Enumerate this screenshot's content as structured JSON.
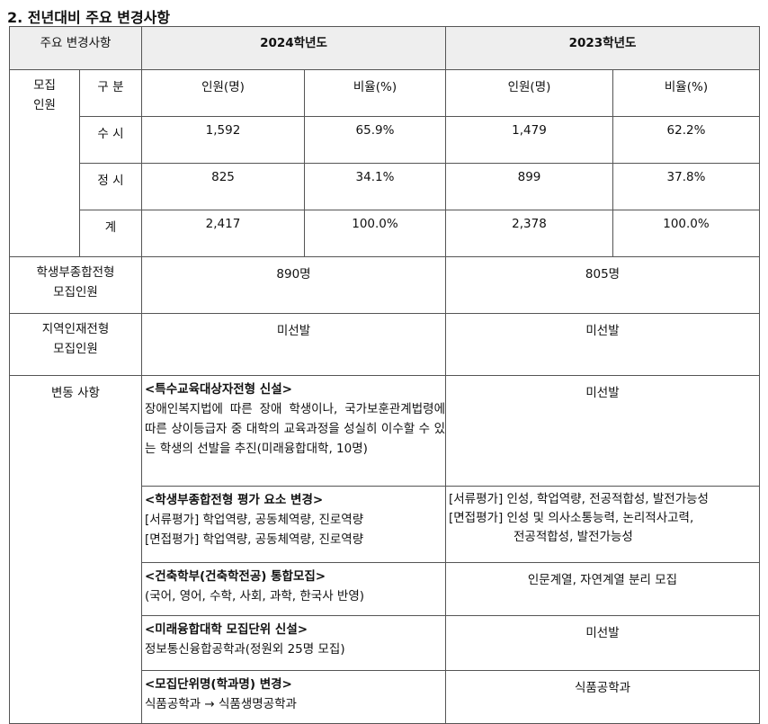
{
  "section_title": "2. 전년대비 주요 변경사항",
  "header": {
    "col1": "주요 변경사항",
    "col2024": "2024학년도",
    "col2023": "2023학년도"
  },
  "quota": {
    "label_l1": "모집",
    "label_l2": "인원",
    "sub_header": {
      "label": "구 분",
      "count": "인원(명)",
      "ratio": "비율(%)"
    },
    "rows": [
      {
        "label": "수 시",
        "c2024": "1,592",
        "r2024": "65.9%",
        "c2023": "1,479",
        "r2023": "62.2%"
      },
      {
        "label": "정 시",
        "c2024": "825",
        "r2024": "34.1%",
        "c2023": "899",
        "r2023": "37.8%"
      },
      {
        "label": "계",
        "c2024": "2,417",
        "r2024": "100.0%",
        "c2023": "2,378",
        "r2023": "100.0%"
      }
    ]
  },
  "student_record": {
    "label_l1": "학생부종합전형",
    "label_l2": "모집인원",
    "v2024": "890명",
    "v2023": "805명"
  },
  "regional": {
    "label_l1": "지역인재전형",
    "label_l2": "모집인원",
    "v2024": "미선발",
    "v2023": "미선발"
  },
  "changes": {
    "label": "변동 사항",
    "items": [
      {
        "title": "<특수교육대상자전형 신설>",
        "body": "장애인복지법에 따른 장애 학생이나, 국가보훈관계법령에 따른 상이등급자 중 대학의 교육과정을 성실히 이수할 수 있는 학생의 선발을 추진(미래융합대학, 10명)",
        "prev": "미선발"
      },
      {
        "title": "<학생부종합전형 평가 요소 변경>",
        "body_l1": "[서류평가] 학업역량, 공동체역량, 진로역량",
        "body_l2": "[면접평가] 학업역량, 공동체역량, 진로역량",
        "prev_l1": "[서류평가] 인성, 학업역량, 전공적합성, 발전가능성",
        "prev_l2": "[면접평가] 인성 및 의사소통능력, 논리적사고력,",
        "prev_l3": "전공적합성, 발전가능성"
      },
      {
        "title": "<건축학부(건축학전공) 통합모집>",
        "body": "(국어, 영어, 수학, 사회, 과학, 한국사 반영)",
        "prev": "인문계열, 자연계열 분리 모집"
      },
      {
        "title": "<미래융합대학 모집단위 신설>",
        "body": "정보통신융합공학과(정원외 25명 모집)",
        "prev": "미선발"
      },
      {
        "title": "<모집단위명(학과명) 변경>",
        "body": "식품공학과 → 식품생명공학과",
        "prev": "식품공학과"
      }
    ]
  }
}
